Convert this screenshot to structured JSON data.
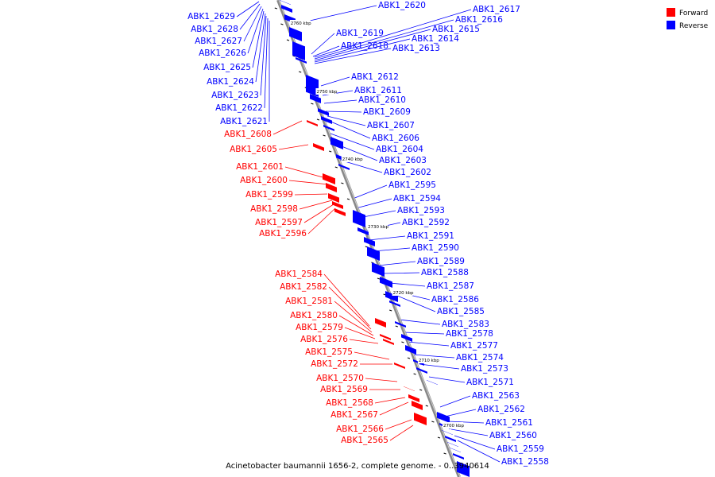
{
  "caption": "Acinetobacter baumannii 1656-2, complete genome. - 0..3940614",
  "legend": {
    "forward_label": "Forward",
    "reverse_label": "Reverse",
    "forward_color": "#ff0000",
    "reverse_color": "#0000ff"
  },
  "scale_labels": [
    "2760 kbp",
    "2750 kbp",
    "2740 kbp",
    "2730 kbp",
    "2720 kbp",
    "2710 kbp",
    "2700 kbp"
  ],
  "genes_left_reverse": [
    "ABK1_2629",
    "ABK1_2628",
    "ABK1_2627",
    "ABK1_2626",
    "ABK1_2625",
    "ABK1_2624",
    "ABK1_2623",
    "ABK1_2622",
    "ABK1_2621"
  ],
  "genes_left_forward": [
    "ABK1_2608",
    "ABK1_2605",
    "ABK1_2601",
    "ABK1_2600",
    "ABK1_2599",
    "ABK1_2598",
    "ABK1_2597",
    "ABK1_2596",
    "ABK1_2584",
    "ABK1_2582",
    "ABK1_2581",
    "ABK1_2580",
    "ABK1_2579",
    "ABK1_2576",
    "ABK1_2575",
    "ABK1_2572",
    "ABK1_2570",
    "ABK1_2569",
    "ABK1_2568",
    "ABK1_2567",
    "ABK1_2566",
    "ABK1_2565"
  ],
  "genes_right_reverse": [
    "ABK1_2620",
    "ABK1_2617",
    "ABK1_2616",
    "ABK1_2615",
    "ABK1_2614",
    "ABK1_2613",
    "ABK1_2619",
    "ABK1_2618",
    "ABK1_2612",
    "ABK1_2611",
    "ABK1_2610",
    "ABK1_2609",
    "ABK1_2607",
    "ABK1_2606",
    "ABK1_2604",
    "ABK1_2603",
    "ABK1_2602",
    "ABK1_2595",
    "ABK1_2594",
    "ABK1_2593",
    "ABK1_2592",
    "ABK1_2591",
    "ABK1_2590",
    "ABK1_2589",
    "ABK1_2588",
    "ABK1_2587",
    "ABK1_2586",
    "ABK1_2585",
    "ABK1_2583",
    "ABK1_2578",
    "ABK1_2577",
    "ABK1_2574",
    "ABK1_2573",
    "ABK1_2571",
    "ABK1_2563",
    "ABK1_2562",
    "ABK1_2561",
    "ABK1_2560",
    "ABK1_2559",
    "ABK1_2558"
  ]
}
